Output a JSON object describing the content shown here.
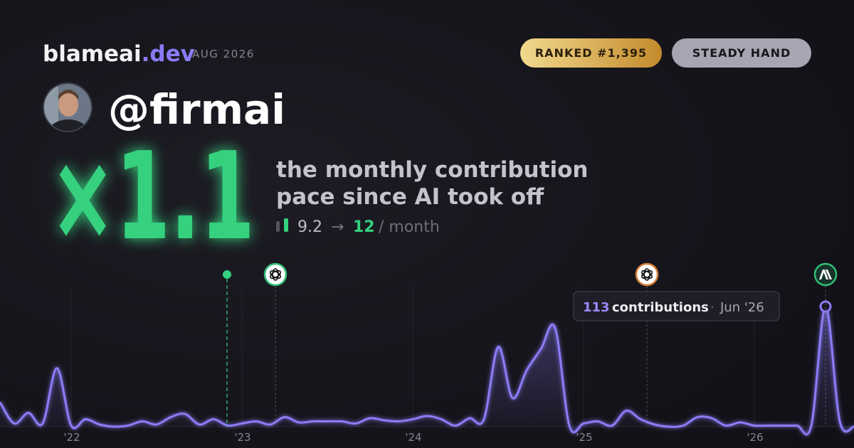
{
  "header": {
    "brand": "blameai",
    "brand_suffix": ".dev",
    "period": "AUG 2026",
    "badges": [
      "RANKED #1,395",
      "STEADY HAND"
    ]
  },
  "profile": {
    "handle": "@firmai"
  },
  "headline": {
    "multiplier": "×1.1",
    "description": [
      "the monthly contribution",
      "pace since AI took off"
    ],
    "before": "9.2",
    "arrow": "→",
    "after": "12",
    "unit": "/ month"
  },
  "chart_data": {
    "type": "line",
    "categories": [
      null,
      null,
      null,
      null,
      null,
      "'22",
      null,
      null,
      null,
      null,
      null,
      null,
      null,
      null,
      null,
      null,
      null,
      "'23",
      null,
      null,
      null,
      null,
      null,
      null,
      null,
      null,
      null,
      null,
      null,
      "'24",
      null,
      null,
      null,
      null,
      null,
      null,
      null,
      null,
      null,
      null,
      null,
      "'25",
      null,
      null,
      null,
      null,
      null,
      null,
      null,
      null,
      null,
      null,
      null,
      "'26",
      null,
      null,
      null,
      null,
      null,
      null,
      null
    ],
    "series": [
      {
        "name": "contributions",
        "color": "#8b7cf6",
        "values": [
          23,
          3,
          13,
          3,
          55,
          1,
          7,
          2,
          0,
          1,
          5,
          2,
          9,
          12,
          2,
          7,
          1,
          3,
          5,
          2,
          9,
          4,
          5,
          5,
          5,
          3,
          8,
          6,
          5,
          7,
          10,
          7,
          1,
          8,
          7,
          75,
          27,
          53,
          73,
          93,
          1,
          3,
          5,
          1,
          15,
          7,
          2,
          0,
          1,
          9,
          8,
          1,
          4,
          1,
          1,
          1,
          1,
          1,
          113,
          5,
          0
        ]
      }
    ],
    "tooltip": {
      "label": "contributions",
      "separator": "·",
      "date": "Jun '26"
    },
    "grid": true
  }
}
